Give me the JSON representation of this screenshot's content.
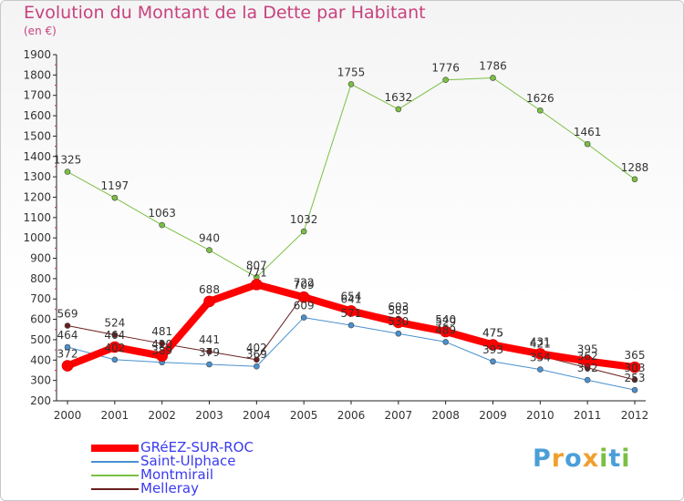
{
  "header": {
    "title": "Evolution du Montant de la Dette par Habitant",
    "unit": "(en €)"
  },
  "logo": {
    "text": "Proxiti"
  },
  "chart_data": {
    "type": "line",
    "title": "Evolution du Montant de la Dette par Habitant",
    "subtitle": "(en €)",
    "x": [
      "2000",
      "2001",
      "2002",
      "2003",
      "2004",
      "2005",
      "2006",
      "2007",
      "2008",
      "2009",
      "2010",
      "2011",
      "2012"
    ],
    "ylim": [
      200,
      1900
    ],
    "yticks": [
      200,
      300,
      400,
      500,
      600,
      700,
      800,
      900,
      1000,
      1100,
      1200,
      1300,
      1400,
      1500,
      1600,
      1700,
      1800,
      1900
    ],
    "grid": false,
    "legend": "bottom-left",
    "series": [
      {
        "name": "GRéEZ-SUR-ROC",
        "color": "#ff0000",
        "width": 8,
        "marker": 6,
        "values": [
          372,
          464,
          420,
          688,
          771,
          709,
          641,
          585,
          540,
          475,
          431,
          395,
          365
        ]
      },
      {
        "name": "Saint-Ulphace",
        "color": "#4a90cf",
        "width": 1,
        "marker": 3,
        "values": [
          464,
          402,
          389,
          379,
          369,
          609,
          571,
          530,
          489,
          393,
          354,
          302,
          253
        ]
      },
      {
        "name": "Montmirail",
        "color": "#7ac043",
        "width": 1,
        "marker": 3,
        "values": [
          1325,
          1197,
          1063,
          940,
          807,
          1032,
          1755,
          1632,
          1776,
          1786,
          1626,
          1461,
          1288
        ]
      },
      {
        "name": "Melleray",
        "color": "#6b1e1e",
        "width": 1,
        "marker": 3,
        "values": [
          569,
          524,
          481,
          441,
          402,
          722,
          654,
          603,
          529,
          475,
          421,
          362,
          303
        ]
      }
    ]
  }
}
